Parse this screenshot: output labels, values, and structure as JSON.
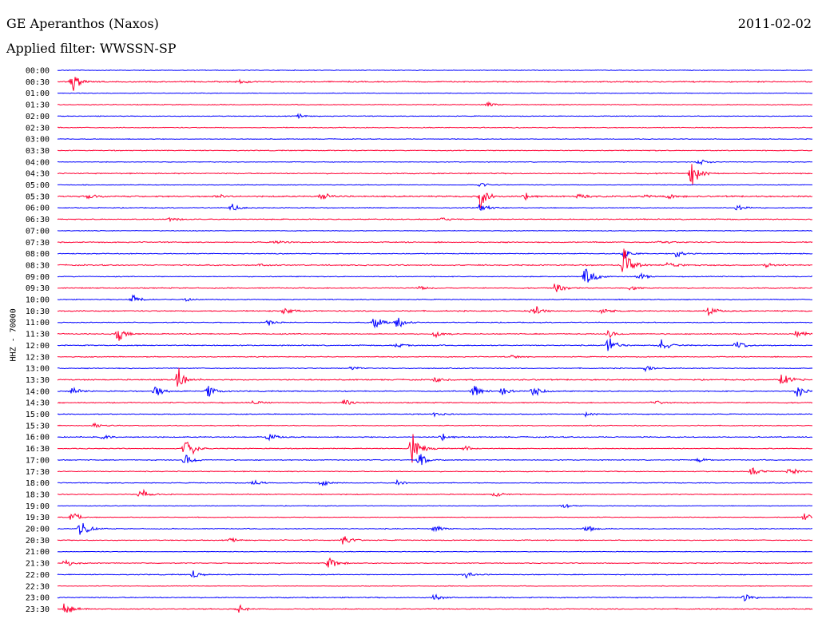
{
  "header": {
    "station": "GE Aperanthos (Naxos)",
    "date": "2011-02-02",
    "filter_label": "Applied filter: WWSSN-SP",
    "channel_label": "HHZ - 70000"
  },
  "chart_data": {
    "type": "line",
    "title": "GE Aperanthos (Naxos)",
    "subtitle": "Applied filter: WWSSN-SP",
    "ylabel": "HHZ - 70000",
    "xlabel": "",
    "date": "2011-02-02",
    "trace_colors": [
      "#0000ff",
      "#ff0033"
    ],
    "rows": [
      {
        "time": "00:00",
        "color": "#0000ff",
        "amp": 0.2,
        "events": []
      },
      {
        "time": "00:30",
        "color": "#ff0033",
        "amp": 0.35,
        "events": [
          {
            "at": 0.02,
            "amp": 7
          },
          {
            "at": 0.24,
            "amp": 1.5
          }
        ]
      },
      {
        "time": "01:00",
        "color": "#0000ff",
        "amp": 0.2,
        "events": []
      },
      {
        "time": "01:30",
        "color": "#ff0033",
        "amp": 0.25,
        "events": [
          {
            "at": 0.57,
            "amp": 2
          }
        ]
      },
      {
        "time": "02:00",
        "color": "#0000ff",
        "amp": 0.2,
        "events": [
          {
            "at": 0.32,
            "amp": 1.5
          }
        ]
      },
      {
        "time": "02:30",
        "color": "#ff0033",
        "amp": 0.25,
        "events": []
      },
      {
        "time": "03:00",
        "color": "#0000ff",
        "amp": 0.2,
        "events": []
      },
      {
        "time": "03:30",
        "color": "#ff0033",
        "amp": 0.25,
        "events": []
      },
      {
        "time": "04:00",
        "color": "#0000ff",
        "amp": 0.2,
        "events": [
          {
            "at": 0.85,
            "amp": 3
          }
        ]
      },
      {
        "time": "04:30",
        "color": "#ff0033",
        "amp": 0.3,
        "events": [
          {
            "at": 0.84,
            "amp": 10
          }
        ]
      },
      {
        "time": "05:00",
        "color": "#0000ff",
        "amp": 0.2,
        "events": [
          {
            "at": 0.56,
            "amp": 2
          }
        ]
      },
      {
        "time": "05:30",
        "color": "#ff0033",
        "amp": 0.4,
        "events": [
          {
            "at": 0.04,
            "amp": 2
          },
          {
            "at": 0.21,
            "amp": 2
          },
          {
            "at": 0.35,
            "amp": 3
          },
          {
            "at": 0.56,
            "amp": 9
          },
          {
            "at": 0.62,
            "amp": 3
          },
          {
            "at": 0.69,
            "amp": 2
          },
          {
            "at": 0.78,
            "amp": 2
          },
          {
            "at": 0.81,
            "amp": 2
          }
        ]
      },
      {
        "time": "06:00",
        "color": "#0000ff",
        "amp": 0.25,
        "events": [
          {
            "at": 0.23,
            "amp": 3
          },
          {
            "at": 0.56,
            "amp": 3
          },
          {
            "at": 0.9,
            "amp": 3
          }
        ]
      },
      {
        "time": "06:30",
        "color": "#ff0033",
        "amp": 0.3,
        "events": [
          {
            "at": 0.15,
            "amp": 2
          },
          {
            "at": 0.51,
            "amp": 1.5
          }
        ]
      },
      {
        "time": "07:00",
        "color": "#0000ff",
        "amp": 0.2,
        "events": []
      },
      {
        "time": "07:30",
        "color": "#ff0033",
        "amp": 0.3,
        "events": [
          {
            "at": 0.29,
            "amp": 1.5
          },
          {
            "at": 0.8,
            "amp": 2
          }
        ]
      },
      {
        "time": "08:00",
        "color": "#0000ff",
        "amp": 0.25,
        "events": [
          {
            "at": 0.75,
            "amp": 4
          },
          {
            "at": 0.82,
            "amp": 3
          }
        ]
      },
      {
        "time": "08:30",
        "color": "#ff0033",
        "amp": 0.35,
        "events": [
          {
            "at": 0.75,
            "amp": 13
          },
          {
            "at": 0.81,
            "amp": 3
          },
          {
            "at": 0.94,
            "amp": 2
          },
          {
            "at": 0.27,
            "amp": 1.5
          }
        ]
      },
      {
        "time": "09:00",
        "color": "#0000ff",
        "amp": 0.25,
        "events": [
          {
            "at": 0.7,
            "amp": 10
          },
          {
            "at": 0.77,
            "amp": 3
          }
        ]
      },
      {
        "time": "09:30",
        "color": "#ff0033",
        "amp": 0.3,
        "events": [
          {
            "at": 0.66,
            "amp": 4
          },
          {
            "at": 0.48,
            "amp": 1.5
          },
          {
            "at": 0.76,
            "amp": 2
          }
        ]
      },
      {
        "time": "10:00",
        "color": "#0000ff",
        "amp": 0.25,
        "events": [
          {
            "at": 0.1,
            "amp": 3
          },
          {
            "at": 0.17,
            "amp": 1.5
          }
        ]
      },
      {
        "time": "10:30",
        "color": "#ff0033",
        "amp": 0.35,
        "events": [
          {
            "at": 0.3,
            "amp": 3
          },
          {
            "at": 0.63,
            "amp": 5
          },
          {
            "at": 0.72,
            "amp": 3
          },
          {
            "at": 0.86,
            "amp": 5
          }
        ]
      },
      {
        "time": "11:00",
        "color": "#0000ff",
        "amp": 0.25,
        "events": [
          {
            "at": 0.42,
            "amp": 5
          },
          {
            "at": 0.45,
            "amp": 5
          },
          {
            "at": 0.28,
            "amp": 2
          }
        ]
      },
      {
        "time": "11:30",
        "color": "#ff0033",
        "amp": 0.3,
        "events": [
          {
            "at": 0.08,
            "amp": 5
          },
          {
            "at": 0.5,
            "amp": 3
          },
          {
            "at": 0.73,
            "amp": 3
          },
          {
            "at": 0.98,
            "amp": 3
          }
        ]
      },
      {
        "time": "12:00",
        "color": "#0000ff",
        "amp": 0.3,
        "events": [
          {
            "at": 0.73,
            "amp": 6
          },
          {
            "at": 0.8,
            "amp": 5
          },
          {
            "at": 0.9,
            "amp": 4
          },
          {
            "at": 0.45,
            "amp": 1.5
          }
        ]
      },
      {
        "time": "12:30",
        "color": "#ff0033",
        "amp": 0.25,
        "events": [
          {
            "at": 0.6,
            "amp": 1.5
          }
        ]
      },
      {
        "time": "13:00",
        "color": "#0000ff",
        "amp": 0.25,
        "events": [
          {
            "at": 0.39,
            "amp": 1.5
          },
          {
            "at": 0.78,
            "amp": 2
          }
        ]
      },
      {
        "time": "13:30",
        "color": "#ff0033",
        "amp": 0.35,
        "events": [
          {
            "at": 0.16,
            "amp": 9
          },
          {
            "at": 0.5,
            "amp": 2
          },
          {
            "at": 0.96,
            "amp": 6
          }
        ]
      },
      {
        "time": "14:00",
        "color": "#0000ff",
        "amp": 0.3,
        "events": [
          {
            "at": 0.02,
            "amp": 3
          },
          {
            "at": 0.13,
            "amp": 5
          },
          {
            "at": 0.2,
            "amp": 4
          },
          {
            "at": 0.55,
            "amp": 6
          },
          {
            "at": 0.59,
            "amp": 4
          },
          {
            "at": 0.63,
            "amp": 5
          },
          {
            "at": 0.98,
            "amp": 4
          }
        ]
      },
      {
        "time": "14:30",
        "color": "#ff0033",
        "amp": 0.3,
        "events": [
          {
            "at": 0.38,
            "amp": 3
          },
          {
            "at": 0.26,
            "amp": 2
          },
          {
            "at": 0.79,
            "amp": 2
          }
        ]
      },
      {
        "time": "15:00",
        "color": "#0000ff",
        "amp": 0.25,
        "events": [
          {
            "at": 0.5,
            "amp": 2
          },
          {
            "at": 0.7,
            "amp": 1.5
          }
        ]
      },
      {
        "time": "15:30",
        "color": "#ff0033",
        "amp": 0.25,
        "events": [
          {
            "at": 0.05,
            "amp": 2
          }
        ]
      },
      {
        "time": "16:00",
        "color": "#0000ff",
        "amp": 0.3,
        "events": [
          {
            "at": 0.06,
            "amp": 2
          },
          {
            "at": 0.28,
            "amp": 3
          },
          {
            "at": 0.51,
            "amp": 3
          }
        ]
      },
      {
        "time": "16:30",
        "color": "#ff0033",
        "amp": 0.25,
        "events": [
          {
            "at": 0.17,
            "amp": 11
          },
          {
            "at": 0.47,
            "amp": 13
          },
          {
            "at": 0.54,
            "amp": 2
          }
        ]
      },
      {
        "time": "17:00",
        "color": "#0000ff",
        "amp": 0.25,
        "events": [
          {
            "at": 0.17,
            "amp": 5
          },
          {
            "at": 0.48,
            "amp": 5
          },
          {
            "at": 0.85,
            "amp": 1.5
          }
        ]
      },
      {
        "time": "17:30",
        "color": "#ff0033",
        "amp": 0.25,
        "events": [
          {
            "at": 0.92,
            "amp": 3
          },
          {
            "at": 0.97,
            "amp": 3
          }
        ]
      },
      {
        "time": "18:00",
        "color": "#0000ff",
        "amp": 0.25,
        "events": [
          {
            "at": 0.26,
            "amp": 2
          },
          {
            "at": 0.35,
            "amp": 3
          },
          {
            "at": 0.45,
            "amp": 2
          }
        ]
      },
      {
        "time": "18:30",
        "color": "#ff0033",
        "amp": 0.25,
        "events": [
          {
            "at": 0.11,
            "amp": 4
          },
          {
            "at": 0.58,
            "amp": 2
          }
        ]
      },
      {
        "time": "19:00",
        "color": "#0000ff",
        "amp": 0.2,
        "events": [
          {
            "at": 0.67,
            "amp": 2
          }
        ]
      },
      {
        "time": "19:30",
        "color": "#ff0033",
        "amp": 0.2,
        "events": [
          {
            "at": 0.02,
            "amp": 4
          },
          {
            "at": 0.99,
            "amp": 3
          }
        ]
      },
      {
        "time": "20:00",
        "color": "#0000ff",
        "amp": 0.25,
        "events": [
          {
            "at": 0.03,
            "amp": 8
          },
          {
            "at": 0.5,
            "amp": 3
          },
          {
            "at": 0.7,
            "amp": 3
          }
        ]
      },
      {
        "time": "20:30",
        "color": "#ff0033",
        "amp": 0.25,
        "events": [
          {
            "at": 0.23,
            "amp": 1.5
          },
          {
            "at": 0.38,
            "amp": 5
          }
        ]
      },
      {
        "time": "21:00",
        "color": "#0000ff",
        "amp": 0.2,
        "events": []
      },
      {
        "time": "21:30",
        "color": "#ff0033",
        "amp": 0.25,
        "events": [
          {
            "at": 0.36,
            "amp": 6
          },
          {
            "at": 0.01,
            "amp": 3
          }
        ]
      },
      {
        "time": "22:00",
        "color": "#0000ff",
        "amp": 0.25,
        "events": [
          {
            "at": 0.18,
            "amp": 3
          },
          {
            "at": 0.54,
            "amp": 3
          }
        ]
      },
      {
        "time": "22:30",
        "color": "#ff0033",
        "amp": 0.2,
        "events": []
      },
      {
        "time": "23:00",
        "color": "#0000ff",
        "amp": 0.3,
        "events": [
          {
            "at": 0.5,
            "amp": 3
          },
          {
            "at": 0.91,
            "amp": 3
          }
        ]
      },
      {
        "time": "23:30",
        "color": "#ff0033",
        "amp": 0.3,
        "events": [
          {
            "at": 0.01,
            "amp": 5
          },
          {
            "at": 0.24,
            "amp": 3
          }
        ]
      }
    ]
  }
}
